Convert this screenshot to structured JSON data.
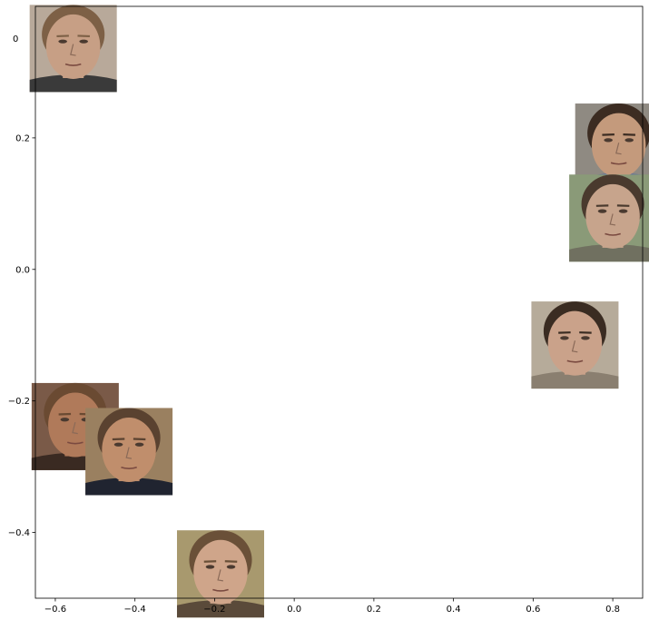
{
  "chart_data": {
    "type": "scatter",
    "title": "",
    "xlabel": "",
    "ylabel": "",
    "xlim": [
      -0.65,
      0.875
    ],
    "ylim": [
      -0.5,
      0.4
    ],
    "grid": false,
    "xticks": [
      -0.6,
      -0.4,
      -0.2,
      0.0,
      0.2,
      0.4,
      0.6,
      0.8
    ],
    "xtick_labels": [
      "−0.6",
      "−0.4",
      "−0.2",
      "0.0",
      "0.2",
      "0.4",
      "0.6",
      "0.8"
    ],
    "yticks": [
      -0.4,
      -0.2,
      0.0,
      0.2
    ],
    "ytick_labels": [
      "−0.4",
      "−0.2",
      "0.0",
      "0.2"
    ],
    "top_tick_partial_label": "0",
    "marker": "face-thumbnail-image",
    "points": [
      {
        "x": -0.555,
        "y": 0.336,
        "skin": "#c79f85",
        "hair": "#7d6046",
        "bg": "#b8a99a",
        "shirt": "#3a3a3a"
      },
      {
        "x": 0.815,
        "y": 0.186,
        "skin": "#c49a7c",
        "hair": "#3c2c22",
        "bg": "#8f8a82",
        "shirt": "#4a62a8"
      },
      {
        "x": 0.8,
        "y": 0.078,
        "skin": "#c7a48c",
        "hair": "#4a3a2e",
        "bg": "#8a9a78",
        "shirt": "#707060"
      },
      {
        "x": 0.705,
        "y": -0.115,
        "skin": "#caa28a",
        "hair": "#3a2c22",
        "bg": "#b6ab9a",
        "shirt": "#8a7f70"
      },
      {
        "x": -0.55,
        "y": -0.239,
        "skin": "#b07a5a",
        "hair": "#6a4a32",
        "bg": "#7a5a48",
        "shirt": "#3a2a22"
      },
      {
        "x": -0.415,
        "y": -0.277,
        "skin": "#c08e6c",
        "hair": "#5a4230",
        "bg": "#9a8060",
        "shirt": "#202430"
      },
      {
        "x": -0.185,
        "y": -0.463,
        "skin": "#cfa58a",
        "hair": "#6a5038",
        "bg": "#a8996e",
        "shirt": "#5a4a3a"
      }
    ]
  }
}
